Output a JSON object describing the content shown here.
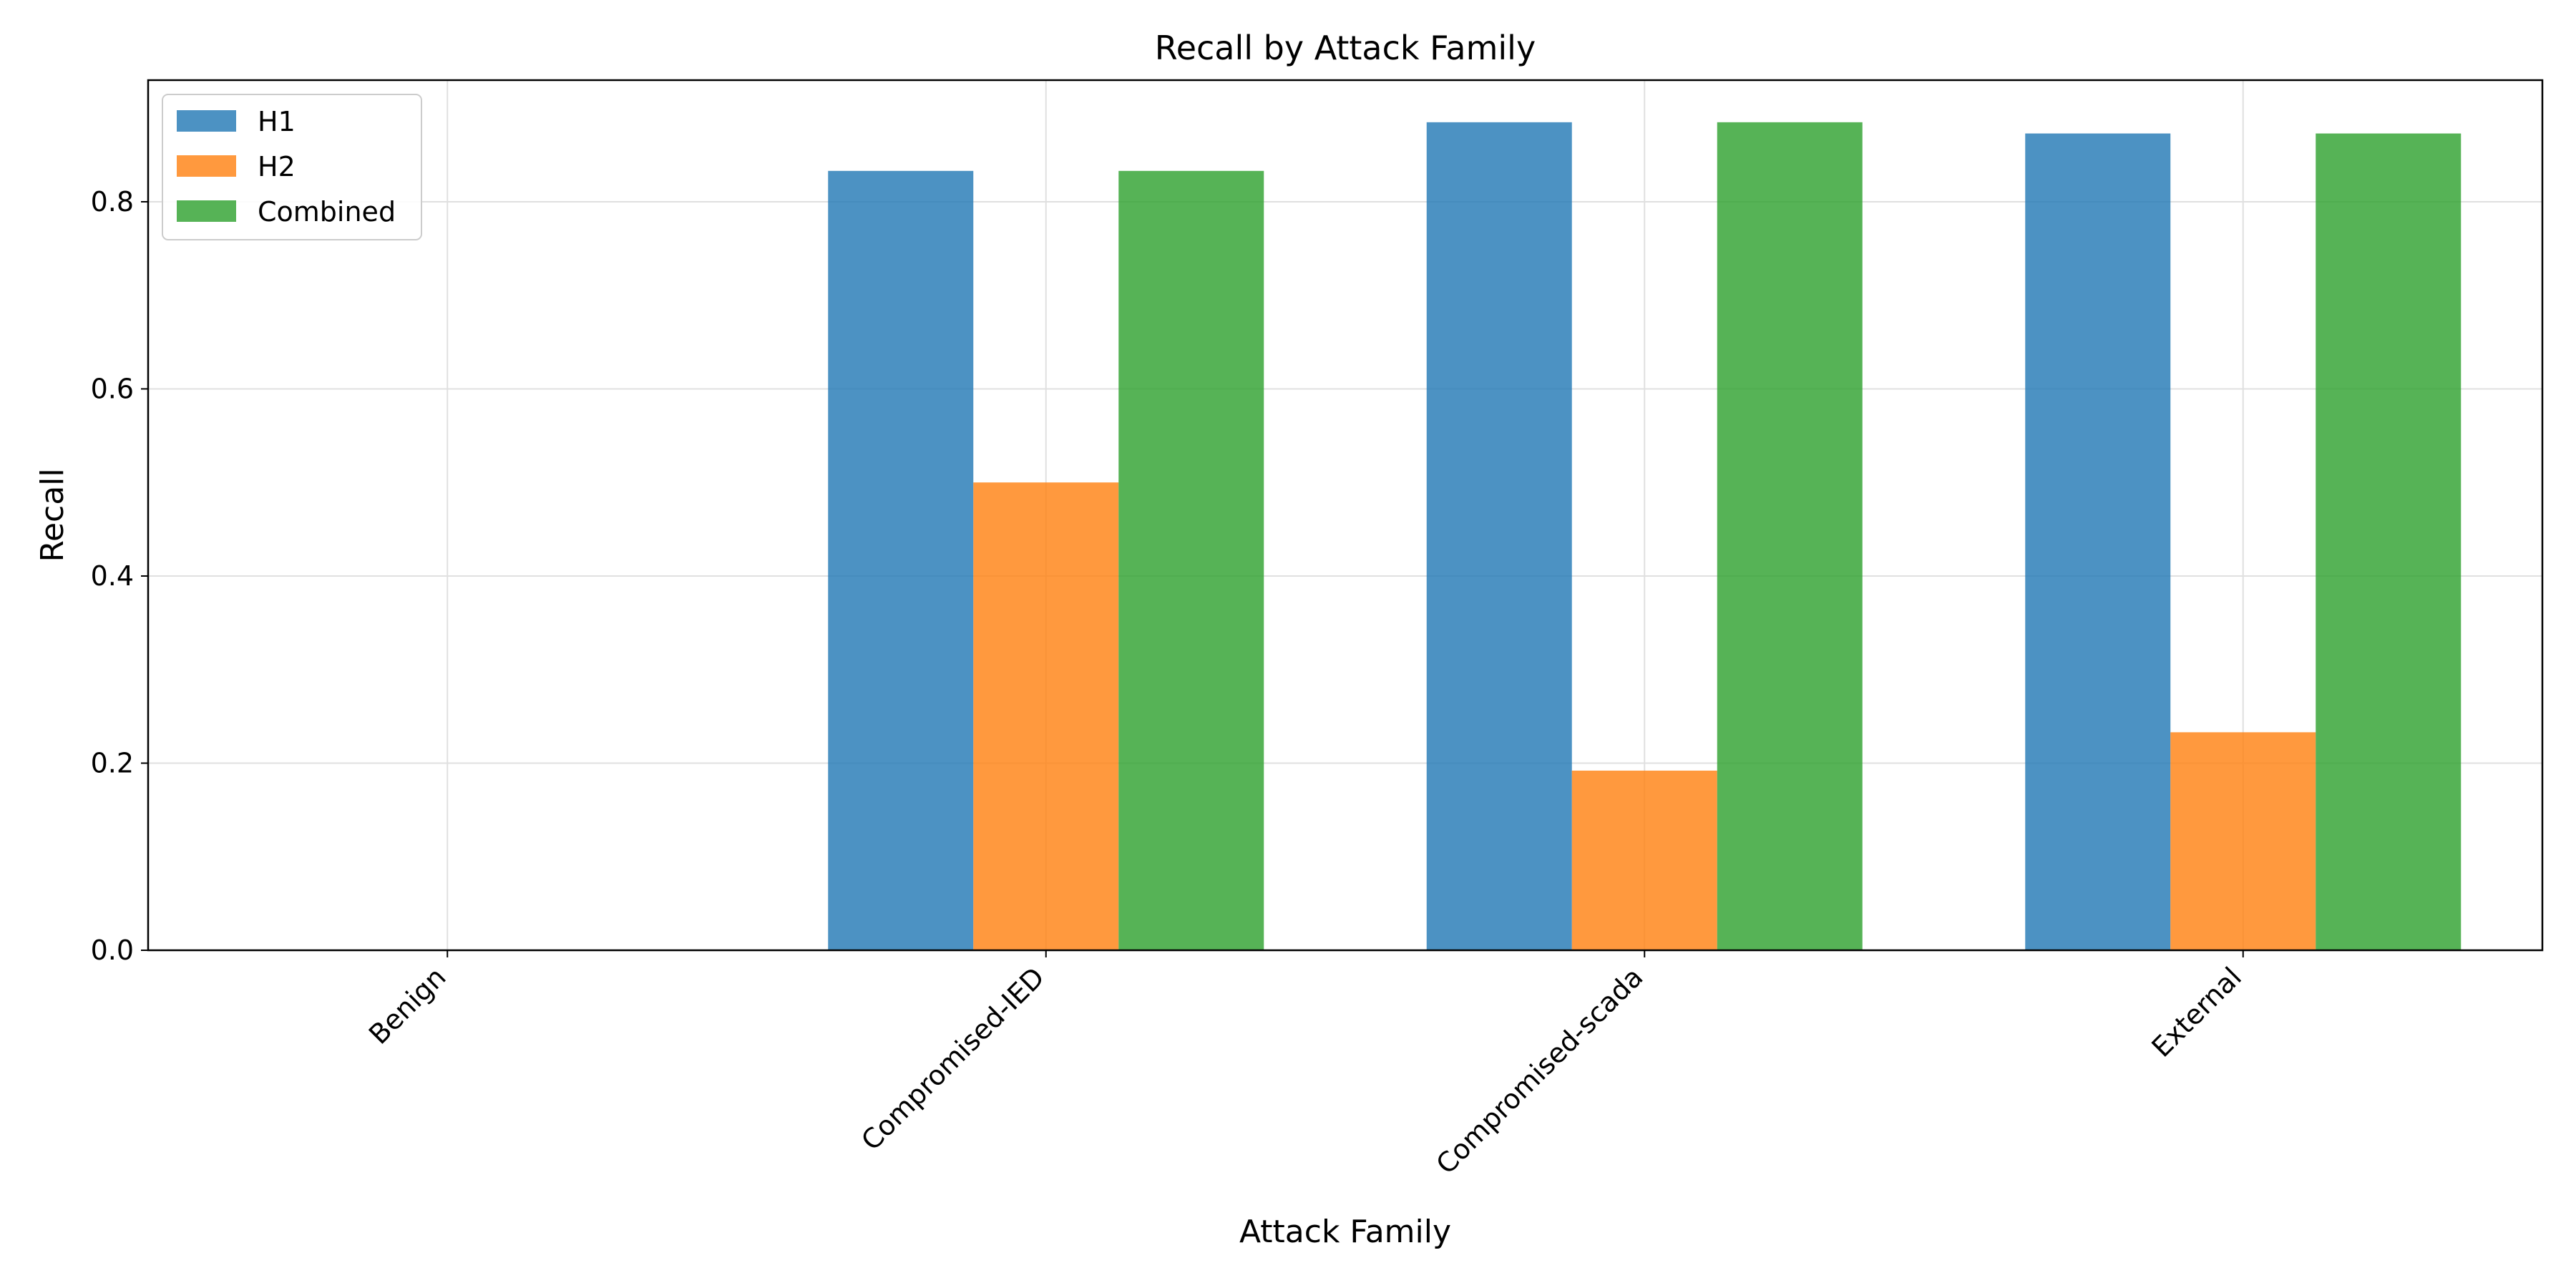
{
  "chart_data": {
    "type": "bar",
    "title": "Recall by Attack Family",
    "xlabel": "Attack Family",
    "ylabel": "Recall",
    "categories": [
      "Benign",
      "Compromised-IED",
      "Compromised-scada",
      "External"
    ],
    "series": [
      {
        "name": "H1",
        "color": "#1f77b4",
        "values": [
          0.0,
          0.833,
          0.885,
          0.873
        ]
      },
      {
        "name": "H2",
        "color": "#ff7f0e",
        "values": [
          0.0,
          0.5,
          0.192,
          0.233
        ]
      },
      {
        "name": "Combined",
        "color": "#2ca02c",
        "values": [
          0.0,
          0.833,
          0.885,
          0.873
        ]
      }
    ],
    "ylim": [
      0,
      0.93
    ],
    "yticks": [
      "0.0",
      "0.2",
      "0.4",
      "0.6",
      "0.8"
    ],
    "grid": true,
    "legend_position": "top-left"
  }
}
